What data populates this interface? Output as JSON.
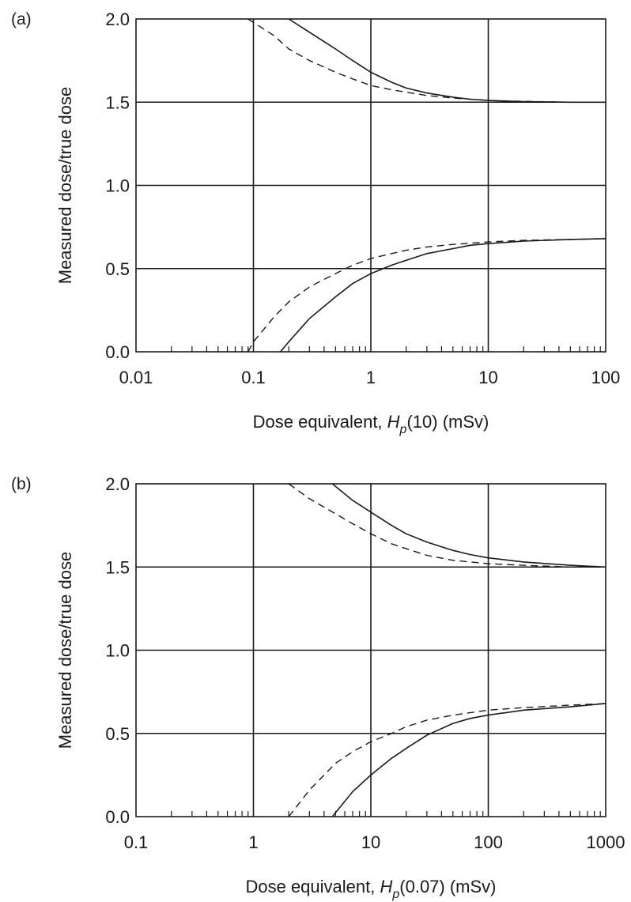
{
  "chart_data": [
    {
      "panel_label": "(a)",
      "type": "line",
      "xscale": "log",
      "xlim": [
        0.01,
        100
      ],
      "ylim": [
        0.0,
        2.0
      ],
      "x_ticks": [
        0.01,
        0.1,
        1,
        10,
        100
      ],
      "x_tick_labels": [
        "0.01",
        "0.1",
        "1",
        "10",
        "100"
      ],
      "y_ticks": [
        0.0,
        0.5,
        1.0,
        1.5,
        2.0
      ],
      "y_tick_labels": [
        "0.0",
        "0.5",
        "1.0",
        "1.5",
        "2.0"
      ],
      "grid": true,
      "ylabel": "Measured dose/true dose",
      "xlabel_prefix": "Dose equivalent, ",
      "xlabel_symbol": "H",
      "xlabel_subscript": "p",
      "xlabel_suffix": "(10) (mSv)",
      "series": [
        {
          "style": "solid",
          "x": [
            0.2,
            0.3,
            0.5,
            0.7,
            1,
            1.5,
            2,
            3,
            5,
            7,
            10,
            20,
            50,
            100
          ],
          "y": [
            2.0,
            1.92,
            1.82,
            1.75,
            1.68,
            1.62,
            1.585,
            1.555,
            1.53,
            1.518,
            1.51,
            1.503,
            1.5,
            1.5
          ]
        },
        {
          "style": "dashed",
          "x": [
            0.09,
            0.15,
            0.2,
            0.3,
            0.5,
            0.7,
            1,
            1.5,
            2,
            3,
            5,
            10,
            20,
            50,
            100
          ],
          "y": [
            2.0,
            1.9,
            1.82,
            1.75,
            1.68,
            1.64,
            1.6,
            1.575,
            1.56,
            1.54,
            1.525,
            1.51,
            1.505,
            1.5,
            1.5
          ]
        },
        {
          "style": "solid",
          "x": [
            0.17,
            0.2,
            0.3,
            0.5,
            0.7,
            1,
            1.5,
            2,
            3,
            5,
            7,
            10,
            20,
            50,
            100
          ],
          "y": [
            0.0,
            0.06,
            0.2,
            0.33,
            0.41,
            0.47,
            0.52,
            0.55,
            0.59,
            0.62,
            0.64,
            0.65,
            0.665,
            0.675,
            0.68
          ]
        },
        {
          "style": "dashed",
          "x": [
            0.09,
            0.1,
            0.15,
            0.2,
            0.3,
            0.5,
            0.7,
            1,
            1.5,
            2,
            3,
            5,
            10,
            20,
            50,
            100
          ],
          "y": [
            0.0,
            0.06,
            0.21,
            0.3,
            0.39,
            0.47,
            0.52,
            0.56,
            0.59,
            0.61,
            0.63,
            0.645,
            0.66,
            0.67,
            0.675,
            0.68
          ]
        }
      ]
    },
    {
      "panel_label": "(b)",
      "type": "line",
      "xscale": "log",
      "xlim": [
        0.1,
        1000
      ],
      "ylim": [
        0.0,
        2.0
      ],
      "x_ticks": [
        0.1,
        1,
        10,
        100,
        1000
      ],
      "x_tick_labels": [
        "0.1",
        "1",
        "10",
        "100",
        "1000"
      ],
      "y_ticks": [
        0.0,
        0.5,
        1.0,
        1.5,
        2.0
      ],
      "y_tick_labels": [
        "0.0",
        "0.5",
        "1.0",
        "1.5",
        "2.0"
      ],
      "grid": true,
      "ylabel": "Measured dose/true dose",
      "xlabel_prefix": "Dose equivalent, ",
      "xlabel_symbol": "H",
      "xlabel_subscript": "p",
      "xlabel_suffix": "(0.07) (mSv)",
      "series": [
        {
          "style": "solid",
          "x": [
            4.7,
            7,
            10,
            15,
            20,
            30,
            50,
            70,
            100,
            200,
            500,
            1000
          ],
          "y": [
            2.0,
            1.9,
            1.83,
            1.75,
            1.7,
            1.65,
            1.6,
            1.575,
            1.555,
            1.53,
            1.51,
            1.5
          ]
        },
        {
          "style": "dashed",
          "x": [
            2,
            3,
            5,
            7,
            10,
            15,
            20,
            30,
            50,
            100,
            200,
            500,
            1000
          ],
          "y": [
            2.0,
            1.91,
            1.82,
            1.76,
            1.7,
            1.64,
            1.61,
            1.57,
            1.54,
            1.52,
            1.51,
            1.5,
            1.5
          ]
        },
        {
          "style": "solid",
          "x": [
            4.7,
            7,
            10,
            15,
            20,
            30,
            50,
            70,
            100,
            200,
            500,
            1000
          ],
          "y": [
            0.0,
            0.15,
            0.25,
            0.35,
            0.41,
            0.49,
            0.56,
            0.59,
            0.61,
            0.64,
            0.66,
            0.68
          ]
        },
        {
          "style": "dashed",
          "x": [
            2,
            3,
            5,
            7,
            10,
            15,
            20,
            30,
            50,
            100,
            200,
            500,
            1000
          ],
          "y": [
            0.0,
            0.16,
            0.32,
            0.39,
            0.45,
            0.5,
            0.54,
            0.58,
            0.61,
            0.64,
            0.655,
            0.67,
            0.68
          ]
        }
      ]
    }
  ]
}
